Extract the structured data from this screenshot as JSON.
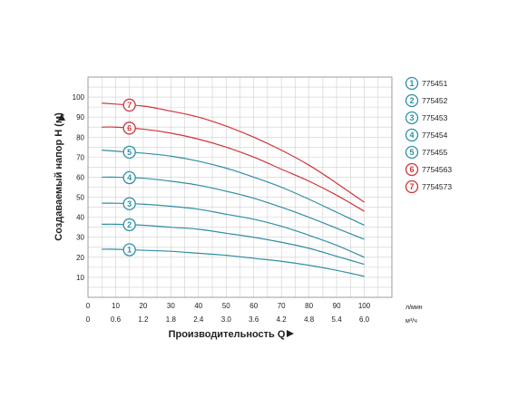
{
  "chart_data": {
    "type": "line",
    "xlabel": "Производительность Q",
    "ylabel": "Создаваемый напор H (м)",
    "x_unit": "л/мин",
    "x2_unit": "м³/ч",
    "xlim": [
      0,
      110
    ],
    "ylim": [
      0,
      110
    ],
    "x_ticks": [
      "0",
      "10",
      "20",
      "30",
      "40",
      "50",
      "60",
      "70",
      "80",
      "90",
      "100"
    ],
    "x2_ticks": [
      "0",
      "0.6",
      "1.2",
      "1.8",
      "2.4",
      "3.0",
      "3.6",
      "4.2",
      "4.8",
      "5.4",
      "6.0"
    ],
    "y_ticks": [
      "10",
      "20",
      "30",
      "40",
      "50",
      "60",
      "70",
      "80",
      "90",
      "100"
    ],
    "grid": true,
    "legend_position": "right",
    "colors": {
      "blue": "#2f8fa3",
      "red": "#d0343a"
    },
    "x": [
      5,
      10,
      20,
      30,
      40,
      50,
      60,
      70,
      80,
      90,
      100
    ],
    "series": [
      {
        "marker": "1",
        "name": "775451",
        "color": "blue",
        "values": [
          24,
          24,
          23.5,
          23,
          22,
          21,
          19.5,
          18,
          16,
          13.5,
          10.5
        ]
      },
      {
        "marker": "2",
        "name": "775452",
        "color": "blue",
        "values": [
          36.5,
          36.5,
          36,
          35,
          34,
          32,
          30,
          27.5,
          24.5,
          20.5,
          16.5
        ]
      },
      {
        "marker": "3",
        "name": "775453",
        "color": "blue",
        "values": [
          47,
          47,
          46.5,
          45.5,
          44,
          41.5,
          39,
          35.5,
          31,
          26,
          20
        ]
      },
      {
        "marker": "4",
        "name": "775454",
        "color": "blue",
        "values": [
          60,
          60,
          59.5,
          58,
          56,
          53,
          49.5,
          45,
          40,
          34.5,
          29
        ]
      },
      {
        "marker": "5",
        "name": "775455",
        "color": "blue",
        "values": [
          73.5,
          73,
          72,
          70.5,
          68,
          64.5,
          60,
          55,
          49,
          42.5,
          36
        ]
      },
      {
        "marker": "6",
        "name": "7754563",
        "color": "red",
        "values": [
          85,
          85,
          84,
          82,
          79,
          75,
          70,
          64,
          58,
          51,
          43
        ]
      },
      {
        "marker": "7",
        "name": "7754573",
        "color": "red",
        "values": [
          97,
          96.5,
          95.5,
          93,
          90,
          85.5,
          80,
          73.5,
          66,
          57,
          47.5
        ]
      }
    ]
  }
}
